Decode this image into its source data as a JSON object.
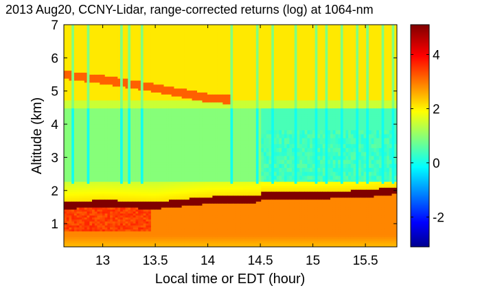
{
  "chart_data": {
    "type": "heatmap",
    "title": "2013 Aug20, CCNY-Lidar, range-corrected returns (log) at 1064-nm",
    "xlabel": "Local time or EDT (hour)",
    "ylabel": "Altitude (km)",
    "xlim": [
      12.63,
      15.8
    ],
    "ylim": [
      0.3,
      7
    ],
    "xticks": [
      13,
      13.5,
      14,
      14.5,
      15,
      15.5
    ],
    "xtick_labels": [
      "13",
      "13.5",
      "14",
      "14.5",
      "15",
      "15.5"
    ],
    "yticks": [
      1,
      2,
      3,
      4,
      5,
      6,
      7
    ],
    "ytick_labels": [
      "1",
      "2",
      "3",
      "4",
      "5",
      "6",
      "7"
    ],
    "colorbar": {
      "colormap": "jet",
      "range": [
        -3.1,
        5.1
      ],
      "ticks": [
        -2,
        0,
        2,
        4
      ],
      "tick_labels": [
        "-2",
        "0",
        "2",
        "4"
      ]
    },
    "features": [
      {
        "name": "boundary-layer-top",
        "points": [
          [
            12.63,
            1.55
          ],
          [
            13.0,
            1.6
          ],
          [
            13.5,
            1.55
          ],
          [
            14.0,
            1.7
          ],
          [
            14.5,
            1.75
          ],
          [
            14.5,
            1.85
          ],
          [
            15.0,
            1.85
          ],
          [
            15.5,
            1.9
          ],
          [
            15.8,
            2.0
          ]
        ],
        "value": 5
      },
      {
        "name": "elevated-aerosol-layer",
        "points": [
          [
            12.63,
            5.5
          ],
          [
            13.0,
            5.35
          ],
          [
            13.5,
            5.1
          ],
          [
            14.0,
            4.8
          ],
          [
            14.2,
            4.75
          ]
        ],
        "value": 3.2
      },
      {
        "name": "clear-troposphere",
        "y_range": [
          2.3,
          4.5
        ],
        "value": 0.9
      },
      {
        "name": "free-troposphere-upper",
        "y_range": [
          4.6,
          7
        ],
        "value": 2.2
      }
    ]
  }
}
